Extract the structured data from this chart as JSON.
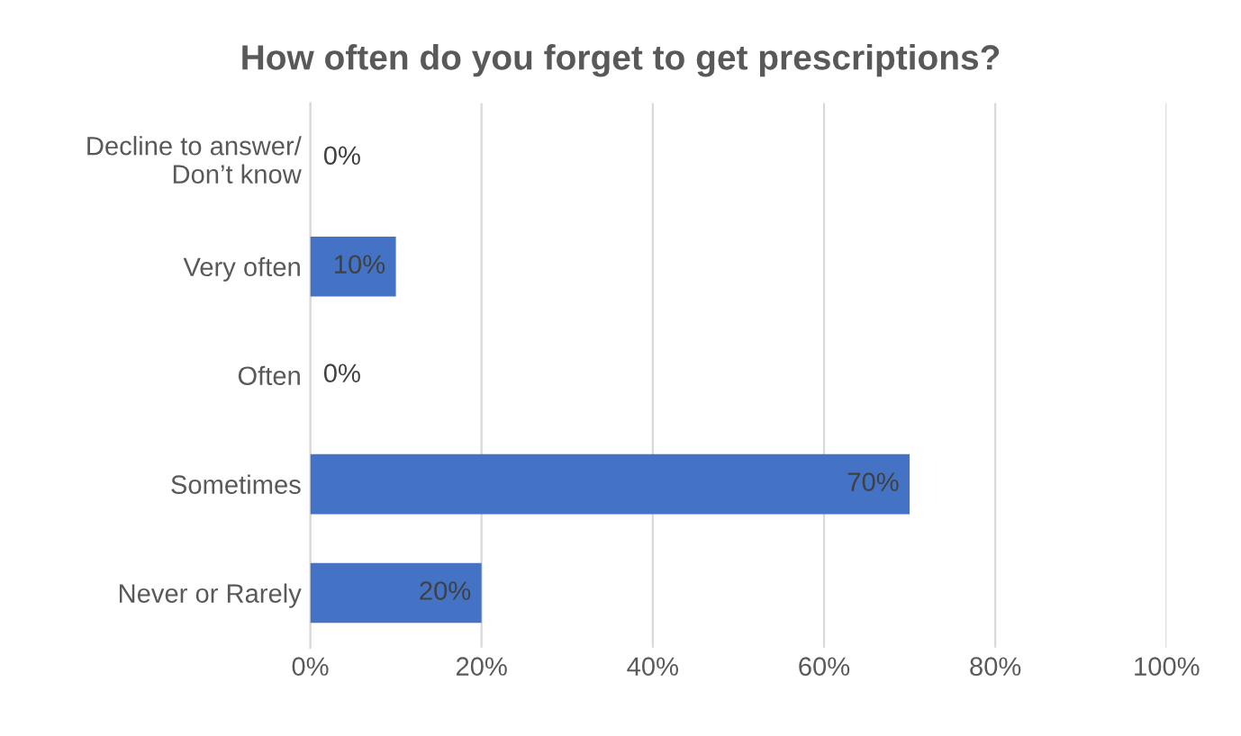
{
  "chart_data": {
    "type": "bar",
    "orientation": "horizontal",
    "title": "How often do you forget to get prescriptions?",
    "categories": [
      "Decline to answer/\nDon’t know",
      "Very often",
      "Often",
      "Sometimes",
      "Never or Rarely"
    ],
    "values": [
      0,
      10,
      0,
      70,
      20
    ],
    "value_labels": [
      "0%",
      "10%",
      "0%",
      "70%",
      "20%"
    ],
    "color": "#4472c4",
    "xlim": [
      0,
      100
    ],
    "xticks": [
      {
        "value": 0,
        "label": "0%"
      },
      {
        "value": 20,
        "label": "20%"
      },
      {
        "value": 40,
        "label": "40%"
      },
      {
        "value": 60,
        "label": "60%"
      },
      {
        "value": 80,
        "label": "80%"
      },
      {
        "value": 100,
        "label": "100%"
      }
    ],
    "grid": "x",
    "legend": false
  }
}
